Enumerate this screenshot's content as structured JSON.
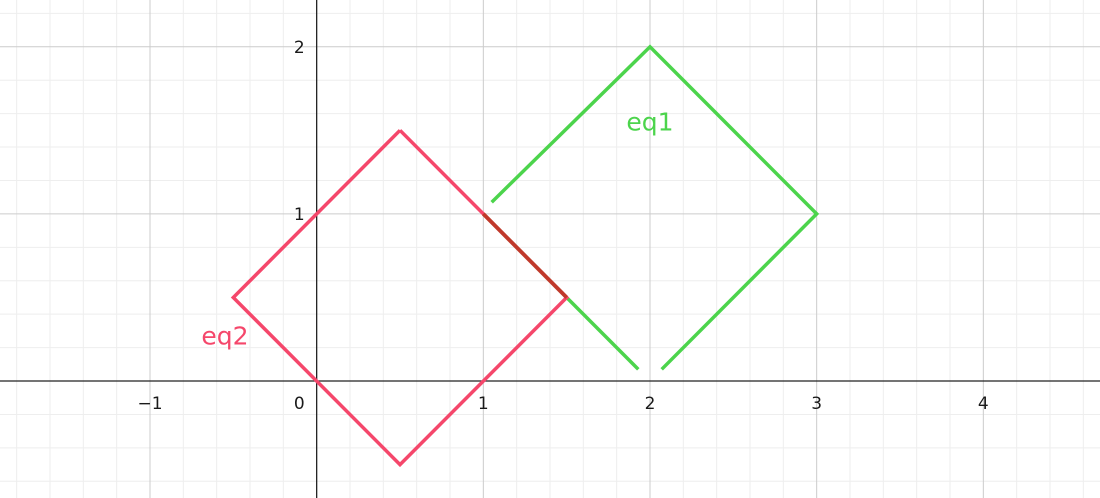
{
  "chart_data": {
    "type": "line",
    "title": "",
    "xlabel": "",
    "ylabel": "",
    "xlim": [
      -1.9,
      4.7
    ],
    "ylim": [
      -0.7,
      2.28
    ],
    "grid": true,
    "minor_grid": true,
    "x_ticks": [
      {
        "value": -1,
        "label": "−1"
      },
      {
        "value": 0,
        "label": "0"
      },
      {
        "value": 1,
        "label": "1"
      },
      {
        "value": 2,
        "label": "2"
      },
      {
        "value": 3,
        "label": "3"
      },
      {
        "value": 4,
        "label": "4"
      }
    ],
    "y_ticks": [
      {
        "value": 1,
        "label": "1"
      },
      {
        "value": 2,
        "label": "2"
      }
    ],
    "series": [
      {
        "name": "eq1",
        "color": "#4cd44c",
        "points": [
          [
            1.05,
            1.07
          ],
          [
            2.0,
            2.0
          ],
          [
            3.0,
            1.0
          ],
          [
            2.07,
            0.07
          ]
        ],
        "extra_segment": [
          [
            1.93,
            0.07
          ],
          [
            1.0,
            1.0
          ]
        ],
        "label_at": [
          2.0,
          1.5
        ]
      },
      {
        "name": "eq2",
        "color": "#f5476b",
        "points": [
          [
            0.5,
            1.5
          ],
          [
            1.5,
            0.5
          ],
          [
            0.5,
            -0.5
          ],
          [
            -0.5,
            0.5
          ],
          [
            0.5,
            1.5
          ]
        ],
        "label_at": [
          -0.55,
          0.22
        ]
      }
    ],
    "overlap": {
      "color": "#c0392b",
      "points": [
        [
          1.0,
          1.0
        ],
        [
          1.5,
          0.5
        ]
      ]
    }
  }
}
